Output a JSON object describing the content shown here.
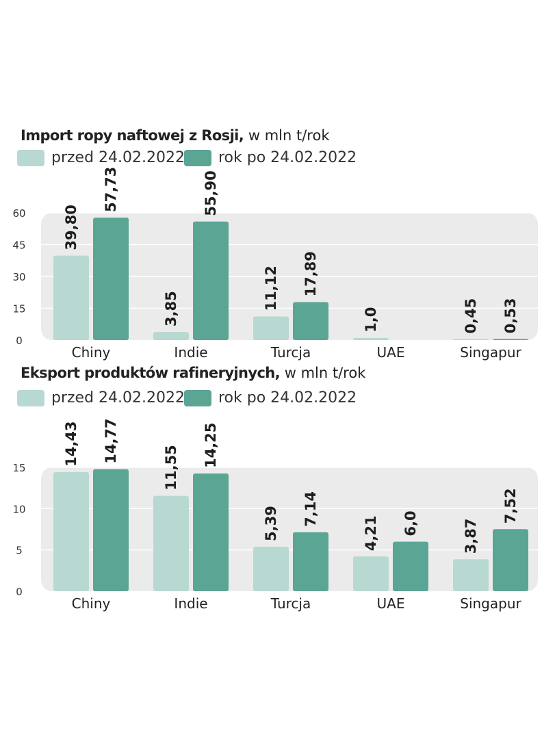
{
  "colors": {
    "before": "#b7d9d2",
    "after": "#5ba595",
    "panel": "#ebebeb",
    "grid": "#ffffff"
  },
  "legend": {
    "before_label": "przed 24.02.2022",
    "after_label": "rok po 24.02.2022"
  },
  "chart_data": [
    {
      "type": "bar",
      "title": "Import ropy naftowej z Rosji,",
      "title_unit": "w mln t/rok",
      "categories": [
        "Chiny",
        "Indie",
        "Turcja",
        "UAE",
        "Singapur"
      ],
      "series": [
        {
          "name": "przed 24.02.2022",
          "values": [
            39.8,
            3.85,
            11.12,
            1.0,
            0.45
          ],
          "labels": [
            "39,80",
            "3,85",
            "11,12",
            "1,0",
            "0,45"
          ]
        },
        {
          "name": "rok po 24.02.2022",
          "values": [
            57.73,
            55.9,
            17.89,
            null,
            0.53
          ],
          "labels": [
            "57,73",
            "55,90",
            "17,89",
            "",
            "0,53"
          ]
        }
      ],
      "yticks": [
        0,
        15,
        30,
        45,
        60
      ],
      "ylim": [
        0,
        60
      ],
      "grid": true,
      "legend_position": "top-left"
    },
    {
      "type": "bar",
      "title": "Eksport produktów rafineryjnych,",
      "title_unit": "w mln t/rok",
      "categories": [
        "Chiny",
        "Indie",
        "Turcja",
        "UAE",
        "Singapur"
      ],
      "series": [
        {
          "name": "przed 24.02.2022",
          "values": [
            14.43,
            11.55,
            5.39,
            4.21,
            3.87
          ],
          "labels": [
            "14,43",
            "11,55",
            "5,39",
            "4,21",
            "3,87"
          ]
        },
        {
          "name": "rok po 24.02.2022",
          "values": [
            14.77,
            14.25,
            7.14,
            6.0,
            7.52
          ],
          "labels": [
            "14,77",
            "14,25",
            "7,14",
            "6,0",
            "7,52"
          ]
        }
      ],
      "yticks": [
        0,
        5,
        10,
        15
      ],
      "ylim": [
        0,
        15
      ],
      "grid": true,
      "legend_position": "top-left"
    }
  ]
}
